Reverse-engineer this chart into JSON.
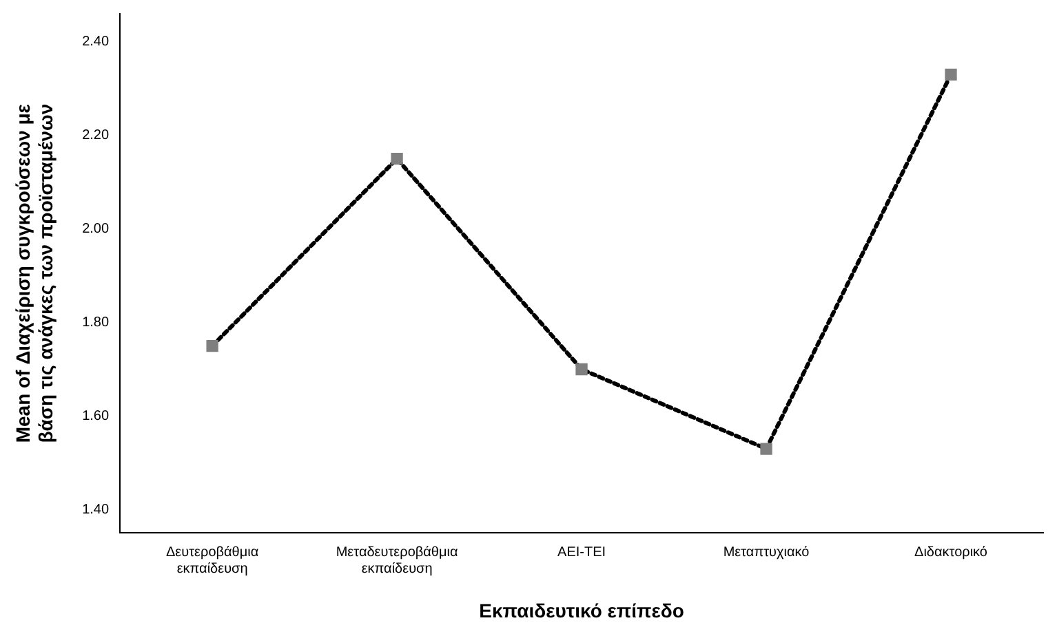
{
  "chart_data": {
    "type": "line",
    "xlabel": "Εκπαιδευτικό επίπεδο",
    "ylabel": "Mean of Διαχείριση συγκρούσεων με βάση τις ανάγκες των προϊσταμένων",
    "categories": [
      "Δευτεροβάθμια εκπαίδευση",
      "Μεταδευτεροβάθμια εκπαίδευση",
      "ΑΕΙ-ΤΕΙ",
      "Μεταπτυχιακό",
      "Διδακτορικό"
    ],
    "series": [
      {
        "color": "#7f7f7f",
        "values": [
          1.75,
          2.15,
          1.7,
          1.53,
          2.33
        ]
      }
    ],
    "ylim": [
      1.35,
      2.46
    ],
    "yticks": [
      {
        "value": 1.4,
        "label": "1.40"
      },
      {
        "value": 1.6,
        "label": "1.60"
      },
      {
        "value": 1.8,
        "label": "1.80"
      },
      {
        "value": 2.0,
        "label": "2.00"
      },
      {
        "value": 2.2,
        "label": "2.20"
      },
      {
        "value": 2.4,
        "label": "2.40"
      }
    ],
    "grid": false,
    "legend": false,
    "marker": "square",
    "line_style": "dotted"
  }
}
